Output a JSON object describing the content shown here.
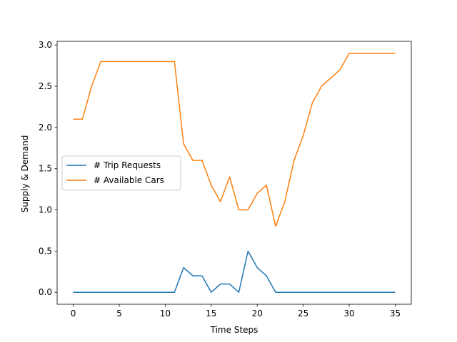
{
  "chart_data": {
    "type": "line",
    "title": "",
    "xlabel": "Time Steps",
    "ylabel": "Supply & Demand",
    "xlim": [
      -1.75,
      36.75
    ],
    "ylim": [
      -0.145,
      3.045
    ],
    "xticks": [
      0,
      5,
      10,
      15,
      20,
      25,
      30,
      35
    ],
    "xtick_labels": [
      "0",
      "5",
      "10",
      "15",
      "20",
      "25",
      "30",
      "35"
    ],
    "yticks": [
      0.0,
      0.5,
      1.0,
      1.5,
      2.0,
      2.5,
      3.0
    ],
    "ytick_labels": [
      "0.0",
      "0.5",
      "1.0",
      "1.5",
      "2.0",
      "2.5",
      "3.0"
    ],
    "grid": false,
    "legend": {
      "placement": "center-left"
    },
    "x": [
      0,
      1,
      2,
      3,
      4,
      5,
      6,
      7,
      8,
      9,
      10,
      11,
      12,
      13,
      14,
      15,
      16,
      17,
      18,
      19,
      20,
      21,
      22,
      23,
      24,
      25,
      26,
      27,
      28,
      29,
      30,
      31,
      32,
      33,
      34,
      35
    ],
    "series": [
      {
        "name": "# Trip Requests",
        "color": "#1f77b4",
        "values": [
          0,
          0,
          0,
          0,
          0,
          0,
          0,
          0,
          0,
          0,
          0,
          0,
          0.3,
          0.2,
          0.2,
          0,
          0.1,
          0.1,
          0,
          0.5,
          0.3,
          0.2,
          0,
          0,
          0,
          0,
          0,
          0,
          0,
          0,
          0,
          0,
          0,
          0,
          0,
          0
        ]
      },
      {
        "name": "# Available Cars",
        "color": "#ff7f0e",
        "values": [
          2.1,
          2.1,
          2.5,
          2.8,
          2.8,
          2.8,
          2.8,
          2.8,
          2.8,
          2.8,
          2.8,
          2.8,
          1.8,
          1.6,
          1.6,
          1.3,
          1.1,
          1.4,
          1.0,
          1.0,
          1.2,
          1.3,
          0.8,
          1.1,
          1.6,
          1.9,
          2.3,
          2.5,
          2.6,
          2.7,
          2.9,
          2.9,
          2.9,
          2.9,
          2.9,
          2.9
        ]
      }
    ]
  }
}
